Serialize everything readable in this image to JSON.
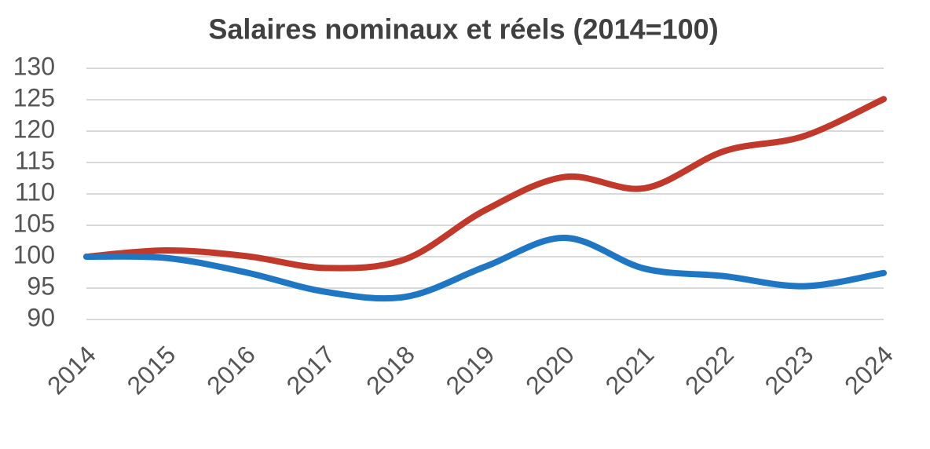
{
  "chart_data": {
    "type": "line",
    "title": "Salaires nominaux et réels (2014=100)",
    "categories": [
      "2014",
      "2015",
      "2016",
      "2017",
      "2018",
      "2019",
      "2020",
      "2021",
      "2022",
      "2023",
      "2024"
    ],
    "series": [
      {
        "color": "#c0392b",
        "values": [
          100,
          101,
          100.1,
          98.2,
          99.6,
          107.4,
          112.7,
          110.9,
          116.8,
          119.2,
          125.1
        ]
      },
      {
        "color": "#1f77c4",
        "values": [
          100,
          99.8,
          97.5,
          94.4,
          93.6,
          98.4,
          103,
          98.1,
          96.9,
          95.3,
          97.4
        ]
      }
    ],
    "ylim": [
      90,
      130
    ],
    "yticks": [
      90,
      95,
      100,
      105,
      110,
      115,
      120,
      125,
      130
    ],
    "grid": true
  }
}
